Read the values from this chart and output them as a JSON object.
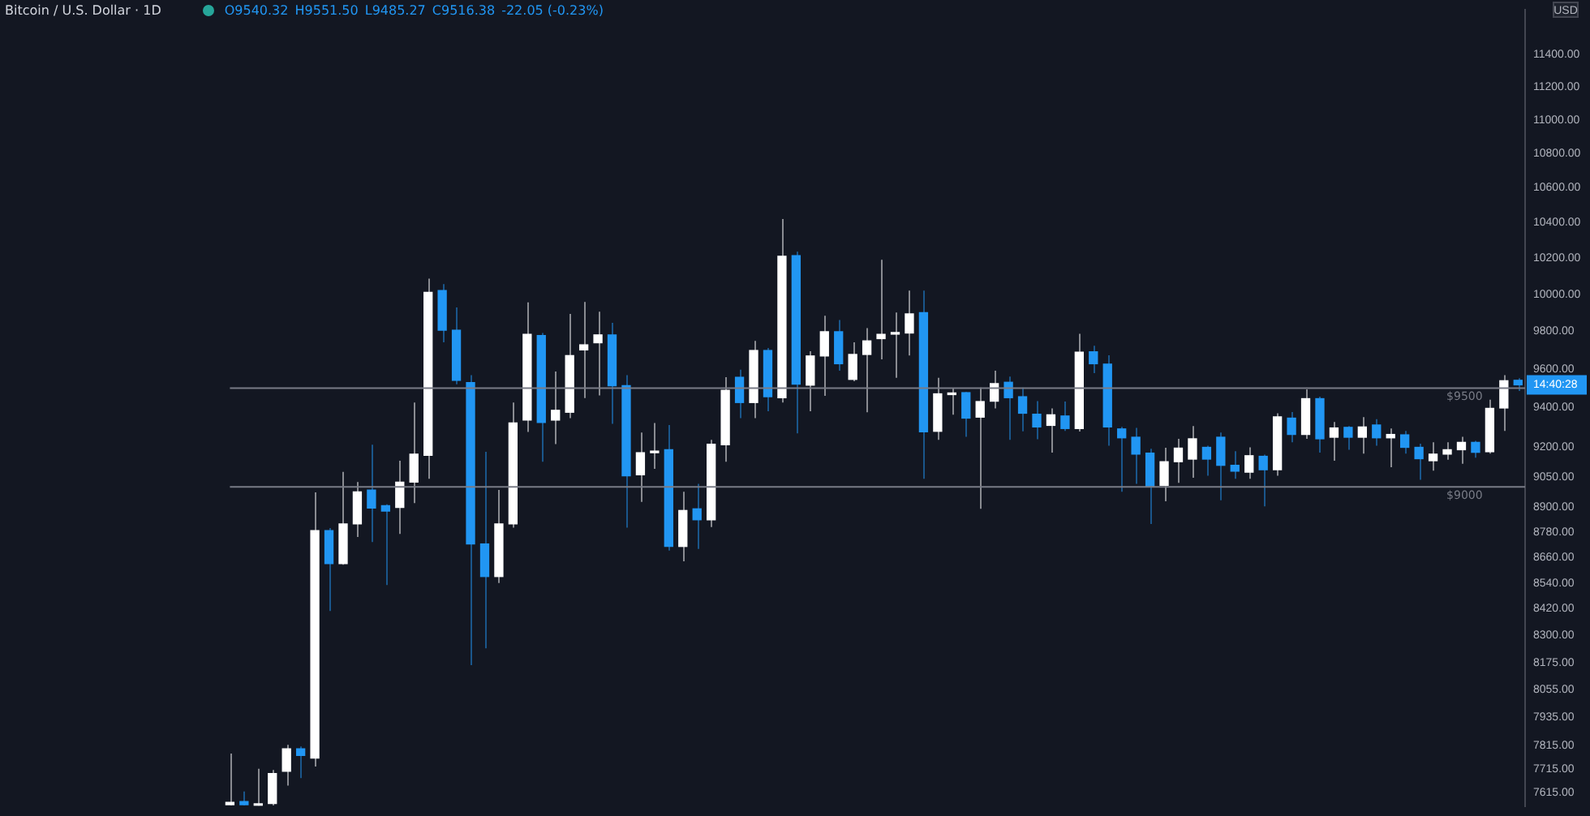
{
  "chart_data": {
    "type": "candlestick",
    "title": "Bitcoin / U.S. Dollar · 1D",
    "annotations": [
      "O9540.32",
      "H9551.50",
      "L9485.27",
      "C9516.38",
      "-22.05 (-0.23%)",
      "USD",
      "14:40:28"
    ],
    "categories": [
      null,
      null,
      null,
      null,
      null,
      null,
      null,
      null,
      null,
      null,
      null,
      null,
      null,
      null,
      null,
      null,
      null,
      null,
      null,
      null,
      null,
      null,
      null,
      null,
      null,
      null,
      null,
      null,
      null,
      null,
      null,
      null,
      null,
      null,
      null,
      null,
      null,
      null,
      null,
      null,
      null,
      null,
      null,
      null,
      null,
      null,
      null,
      null,
      null,
      null,
      null,
      null,
      null,
      null,
      null,
      null,
      null,
      null,
      null,
      null,
      null,
      null,
      null,
      null,
      null,
      null,
      null,
      null,
      null,
      null,
      null,
      null,
      null,
      null,
      null,
      null,
      null,
      null,
      null,
      null,
      null,
      null,
      null,
      null,
      null,
      null,
      null,
      null,
      null,
      null,
      null,
      null
    ],
    "ohlc": [
      [
        7565,
        7780,
        7562,
        7575
      ],
      [
        7578,
        7620,
        7562,
        7565
      ],
      [
        7562,
        7715,
        7561,
        7568
      ],
      [
        7570,
        7710,
        7562,
        7695
      ],
      [
        7705,
        7817,
        7645,
        7800
      ],
      [
        7800,
        7810,
        7676,
        7772
      ],
      [
        7760,
        8973,
        7725,
        8788
      ],
      [
        8788,
        8800,
        8410,
        8631
      ],
      [
        8631,
        9074,
        8625,
        8820
      ],
      [
        8820,
        9024,
        8757,
        8976
      ],
      [
        8985,
        9210,
        8733,
        8897
      ],
      [
        8908,
        8915,
        8530,
        8882
      ],
      [
        8900,
        9130,
        8772,
        9024
      ],
      [
        9024,
        9425,
        8921,
        9163
      ],
      [
        9157,
        10085,
        9040,
        10010
      ],
      [
        10020,
        10055,
        9740,
        9805
      ],
      [
        9805,
        9928,
        9520,
        9540
      ],
      [
        9528,
        9567,
        8165,
        8724
      ],
      [
        8724,
        9175,
        8240,
        8570
      ],
      [
        8570,
        8985,
        8540,
        8820
      ],
      [
        8820,
        9425,
        8802,
        9320
      ],
      [
        9335,
        9955,
        9275,
        9783
      ],
      [
        9777,
        9790,
        9125,
        9323
      ],
      [
        9335,
        9586,
        9213,
        9385
      ],
      [
        9375,
        9893,
        9345,
        9670
      ],
      [
        9700,
        9958,
        9448,
        9727
      ],
      [
        9738,
        9905,
        9462,
        9780
      ],
      [
        9780,
        9845,
        9316,
        9512
      ],
      [
        9512,
        9567,
        8802,
        9055
      ],
      [
        9060,
        9272,
        8927,
        9170
      ],
      [
        9170,
        9320,
        9090,
        9178
      ],
      [
        9185,
        9310,
        8692,
        8712
      ],
      [
        8712,
        8976,
        8642,
        8885
      ],
      [
        8893,
        9015,
        8700,
        8840
      ],
      [
        8840,
        9235,
        8805,
        9213
      ],
      [
        9210,
        9556,
        9125,
        9488
      ],
      [
        9556,
        9596,
        9345,
        9425
      ],
      [
        9425,
        9748,
        9345,
        9697
      ],
      [
        9697,
        9710,
        9380,
        9455
      ],
      [
        9450,
        10420,
        9425,
        10210
      ],
      [
        10213,
        10235,
        9268,
        9520
      ],
      [
        9515,
        9693,
        9380,
        9668
      ],
      [
        9668,
        9883,
        9460,
        9797
      ],
      [
        9797,
        9860,
        9590,
        9627
      ],
      [
        9545,
        9740,
        9535,
        9676
      ],
      [
        9676,
        9816,
        9375,
        9748
      ],
      [
        9760,
        10190,
        9650,
        9783
      ],
      [
        9784,
        9900,
        9553,
        9788
      ],
      [
        9790,
        10020,
        9670,
        9893
      ],
      [
        9900,
        10020,
        9040,
        9275
      ],
      [
        9278,
        9553,
        9235,
        9470
      ],
      [
        9466,
        9500,
        9363,
        9474
      ],
      [
        9476,
        9480,
        9250,
        9345
      ],
      [
        9350,
        9503,
        8893,
        9430
      ],
      [
        9432,
        9590,
        9395,
        9523
      ],
      [
        9530,
        9560,
        9235,
        9450
      ],
      [
        9455,
        9503,
        9278,
        9370
      ],
      [
        9365,
        9432,
        9238,
        9300
      ],
      [
        9308,
        9395,
        9170,
        9362
      ],
      [
        9356,
        9430,
        9280,
        9292
      ],
      [
        9292,
        9786,
        9277,
        9688
      ],
      [
        9690,
        9722,
        9578,
        9627
      ],
      [
        9625,
        9672,
        9205,
        9300
      ],
      [
        9290,
        9300,
        8976,
        9245
      ],
      [
        9248,
        9295,
        9015,
        9163
      ],
      [
        9168,
        9190,
        8820,
        9000
      ],
      [
        9008,
        9195,
        8930,
        9125
      ],
      [
        9125,
        9240,
        9020,
        9193
      ],
      [
        9138,
        9305,
        9045,
        9240
      ],
      [
        9197,
        9205,
        9055,
        9138
      ],
      [
        9248,
        9272,
        8935,
        9107
      ],
      [
        9107,
        9178,
        9040,
        9078
      ],
      [
        9073,
        9197,
        9040,
        9155
      ],
      [
        9152,
        9160,
        8905,
        9085
      ],
      [
        9085,
        9370,
        9055,
        9352
      ],
      [
        9345,
        9376,
        9222,
        9262
      ],
      [
        9262,
        9493,
        9240,
        9445
      ],
      [
        9445,
        9455,
        9170,
        9240
      ],
      [
        9248,
        9325,
        9130,
        9295
      ],
      [
        9298,
        9305,
        9185,
        9248
      ],
      [
        9248,
        9350,
        9165,
        9300
      ],
      [
        9310,
        9340,
        9205,
        9245
      ],
      [
        9245,
        9292,
        9098,
        9262
      ],
      [
        9260,
        9280,
        9165,
        9197
      ],
      [
        9197,
        9215,
        9035,
        9140
      ],
      [
        9130,
        9222,
        9080,
        9163
      ],
      [
        9163,
        9222,
        9135,
        9185
      ],
      [
        9185,
        9250,
        9115,
        9222
      ],
      [
        9222,
        9230,
        9145,
        9172
      ],
      [
        9175,
        9440,
        9165,
        9395
      ],
      [
        9397,
        9567,
        9280,
        9538
      ],
      [
        9540.32,
        9551.5,
        9485.27,
        9516.38
      ]
    ],
    "colors": [
      "#ffffff",
      "#2196f3",
      "#ffffff",
      "#ffffff",
      "#ffffff",
      "#2196f3",
      "#ffffff",
      "#2196f3",
      "#ffffff",
      "#ffffff",
      "#2196f3",
      "#2196f3",
      "#ffffff",
      "#ffffff",
      "#ffffff",
      "#2196f3",
      "#2196f3",
      "#2196f3",
      "#2196f3",
      "#ffffff",
      "#ffffff",
      "#ffffff",
      "#2196f3",
      "#ffffff",
      "#ffffff",
      "#ffffff",
      "#ffffff",
      "#2196f3",
      "#2196f3",
      "#ffffff",
      "#ffffff",
      "#2196f3",
      "#ffffff",
      "#2196f3",
      "#ffffff",
      "#ffffff",
      "#2196f3",
      "#ffffff",
      "#2196f3",
      "#ffffff",
      "#2196f3",
      "#ffffff",
      "#ffffff",
      "#2196f3",
      "#ffffff",
      "#ffffff",
      "#ffffff",
      "#ffffff",
      "#ffffff",
      "#2196f3",
      "#ffffff",
      "#ffffff",
      "#2196f3",
      "#ffffff",
      "#ffffff",
      "#2196f3",
      "#2196f3",
      "#2196f3",
      "#ffffff",
      "#2196f3",
      "#ffffff",
      "#2196f3",
      "#2196f3",
      "#2196f3",
      "#2196f3",
      "#2196f3",
      "#ffffff",
      "#ffffff",
      "#ffffff",
      "#2196f3",
      "#2196f3",
      "#2196f3",
      "#ffffff",
      "#2196f3",
      "#ffffff",
      "#2196f3",
      "#ffffff",
      "#2196f3",
      "#ffffff",
      "#2196f3",
      "#ffffff",
      "#2196f3",
      "#ffffff",
      "#2196f3",
      "#2196f3",
      "#ffffff",
      "#ffffff",
      "#ffffff",
      "#2196f3",
      "#ffffff",
      "#ffffff",
      "#2196f3"
    ],
    "log": true,
    "ylim": [
      7560,
      11680
    ],
    "yticks": [
      {
        "value": 7615,
        "label": "7615.00"
      },
      {
        "value": 7715,
        "label": "7715.00"
      },
      {
        "value": 7815,
        "label": "7815.00"
      },
      {
        "value": 7935,
        "label": "7935.00"
      },
      {
        "value": 8055,
        "label": "8055.00"
      },
      {
        "value": 8175,
        "label": "8175.00"
      },
      {
        "value": 8300,
        "label": "8300.00"
      },
      {
        "value": 8420,
        "label": "8420.00"
      },
      {
        "value": 8540,
        "label": "8540.00"
      },
      {
        "value": 8660,
        "label": "8660.00"
      },
      {
        "value": 8780,
        "label": "8780.00"
      },
      {
        "value": 8900,
        "label": "8900.00"
      },
      {
        "value": 9050,
        "label": "9050.00"
      },
      {
        "value": 9200,
        "label": "9200.00"
      },
      {
        "value": 9400,
        "label": "9400.00"
      },
      {
        "value": 9600,
        "label": "9600.00"
      },
      {
        "value": 9800,
        "label": "9800.00"
      },
      {
        "value": 10000,
        "label": "10000.00"
      },
      {
        "value": 10200,
        "label": "10200.00"
      },
      {
        "value": 10400,
        "label": "10400.00"
      },
      {
        "value": 10600,
        "label": "10600.00"
      },
      {
        "value": 10800,
        "label": "10800.00"
      },
      {
        "value": 11000,
        "label": "11000.00"
      },
      {
        "value": 11200,
        "label": "11200.00"
      },
      {
        "value": 11400,
        "label": "11400.00"
      }
    ],
    "tick_labels": "y",
    "ref_lines": [
      {
        "axis": "y",
        "value": 9500,
        "label": "$9500",
        "color": "#787b86"
      },
      {
        "axis": "y",
        "value": 9000,
        "label": "$9000",
        "color": "#787b86"
      }
    ]
  }
}
